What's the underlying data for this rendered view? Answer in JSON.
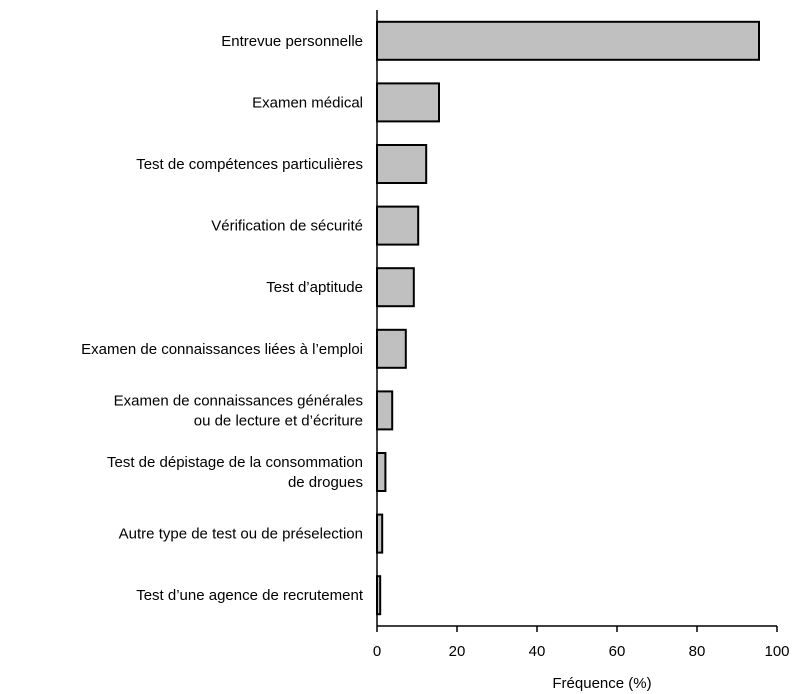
{
  "chart_data": {
    "type": "bar",
    "orientation": "horizontal",
    "categories": [
      [
        "Entrevue personnelle"
      ],
      [
        "Examen médical"
      ],
      [
        "Test de compétences particulières"
      ],
      [
        "Vérification de sécurité"
      ],
      [
        "Test d’aptitude"
      ],
      [
        "Examen de connaissances liées à l’emploi"
      ],
      [
        "Examen de connaissances générales",
        "ou de lecture et d’écriture"
      ],
      [
        "Test de dépistage de la consommation",
        "de drogues"
      ],
      [
        "Autre type de test ou de préselection"
      ],
      [
        "Test d’une agence de recrutement"
      ]
    ],
    "values": [
      95.5,
      15.5,
      12.3,
      10.3,
      9.2,
      7.2,
      3.8,
      2.1,
      1.3,
      0.8
    ],
    "xlabel": "Fréquence (%)",
    "xlim": [
      0,
      100
    ],
    "xticks": [
      "0",
      "20",
      "40",
      "60",
      "80",
      "100"
    ],
    "grid": false,
    "legend": "none",
    "bar_fill": "#c0c0c0",
    "bar_stroke": "#000000"
  }
}
